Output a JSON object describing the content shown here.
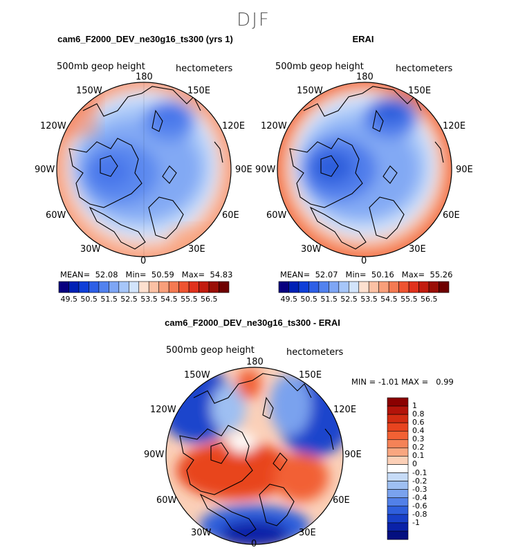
{
  "figure": {
    "title": "DJF"
  },
  "panels": [
    {
      "id": "model",
      "title": "cam6_F2000_DEV_ne30g16_ts300 (yrs 1)",
      "field_label": "500mb geop height",
      "units_label": "hectometers",
      "stats": {
        "mean_label": "MEAN=",
        "mean": "52.08",
        "min_label": "Min=",
        "min": "50.59",
        "max_label": "Max=",
        "max": "54.83"
      },
      "lon_labels": {
        "n180": "180",
        "w150": "150W",
        "e150": "150E",
        "w120": "120W",
        "e120": "120E",
        "w90": "90W",
        "e90": "90E",
        "w60": "60W",
        "e60": "60E",
        "w30": "30W",
        "e30": "30E",
        "z0": "0"
      }
    },
    {
      "id": "obs",
      "title": "ERAI",
      "field_label": "500mb geop height",
      "units_label": "hectometers",
      "stats": {
        "mean_label": "MEAN=",
        "mean": "52.07",
        "min_label": "Min=",
        "min": "50.16",
        "max_label": "Max=",
        "max": "55.26"
      },
      "lon_labels": {
        "n180": "180",
        "w150": "150W",
        "e150": "150E",
        "w120": "120W",
        "e120": "120E",
        "w90": "90W",
        "e90": "90E",
        "w60": "60W",
        "e60": "60E",
        "w30": "30W",
        "e30": "30E",
        "z0": "0"
      }
    },
    {
      "id": "diff",
      "title": "cam6_F2000_DEV_ne30g16_ts300 - ERAI",
      "field_label": "500mb geop height",
      "units_label": "hectometers",
      "stats": {
        "min_label": "MIN =",
        "min": "-1.01",
        "max_label": "MAX =",
        "max": "0.99"
      },
      "lon_labels": {
        "n180": "180",
        "w150": "150W",
        "e150": "150E",
        "w120": "120W",
        "e120": "120E",
        "w90": "90W",
        "e90": "90E",
        "w60": "60W",
        "e60": "60E",
        "w30": "30W",
        "e30": "30E",
        "z0": "0"
      }
    }
  ],
  "colorbars": {
    "field": {
      "colors": [
        "#08007f",
        "#0021b5",
        "#0f3fd8",
        "#2d5fe6",
        "#5282ef",
        "#7ea6f5",
        "#a6c6f9",
        "#d2e4fb",
        "#fde0cf",
        "#fbc1a4",
        "#f89f7a",
        "#f47a52",
        "#ee5431",
        "#e0321c",
        "#c21c0f",
        "#9a0f06",
        "#6e0000"
      ],
      "tick_labels": [
        "49.5",
        "50.5",
        "51.5",
        "52.5",
        "53.5",
        "54.5",
        "55.5",
        "56.5"
      ]
    },
    "diff": {
      "colors_top_to_bottom": [
        "#8b0000",
        "#b3130a",
        "#d22c12",
        "#e8441f",
        "#f26134",
        "#f58257",
        "#f9a680",
        "#fcd0b7",
        "#ffffff",
        "#c6dbf7",
        "#9ebff2",
        "#7aa2ee",
        "#5280e8",
        "#2f5fdc",
        "#1840c8",
        "#0a22a8",
        "#030f80"
      ],
      "tick_labels": [
        "1",
        "0.8",
        "0.6",
        "0.4",
        "0.3",
        "0.2",
        "0.1",
        "0",
        "-0.1",
        "-0.2",
        "-0.3",
        "-0.4",
        "-0.6",
        "-0.8",
        "-1"
      ]
    }
  }
}
